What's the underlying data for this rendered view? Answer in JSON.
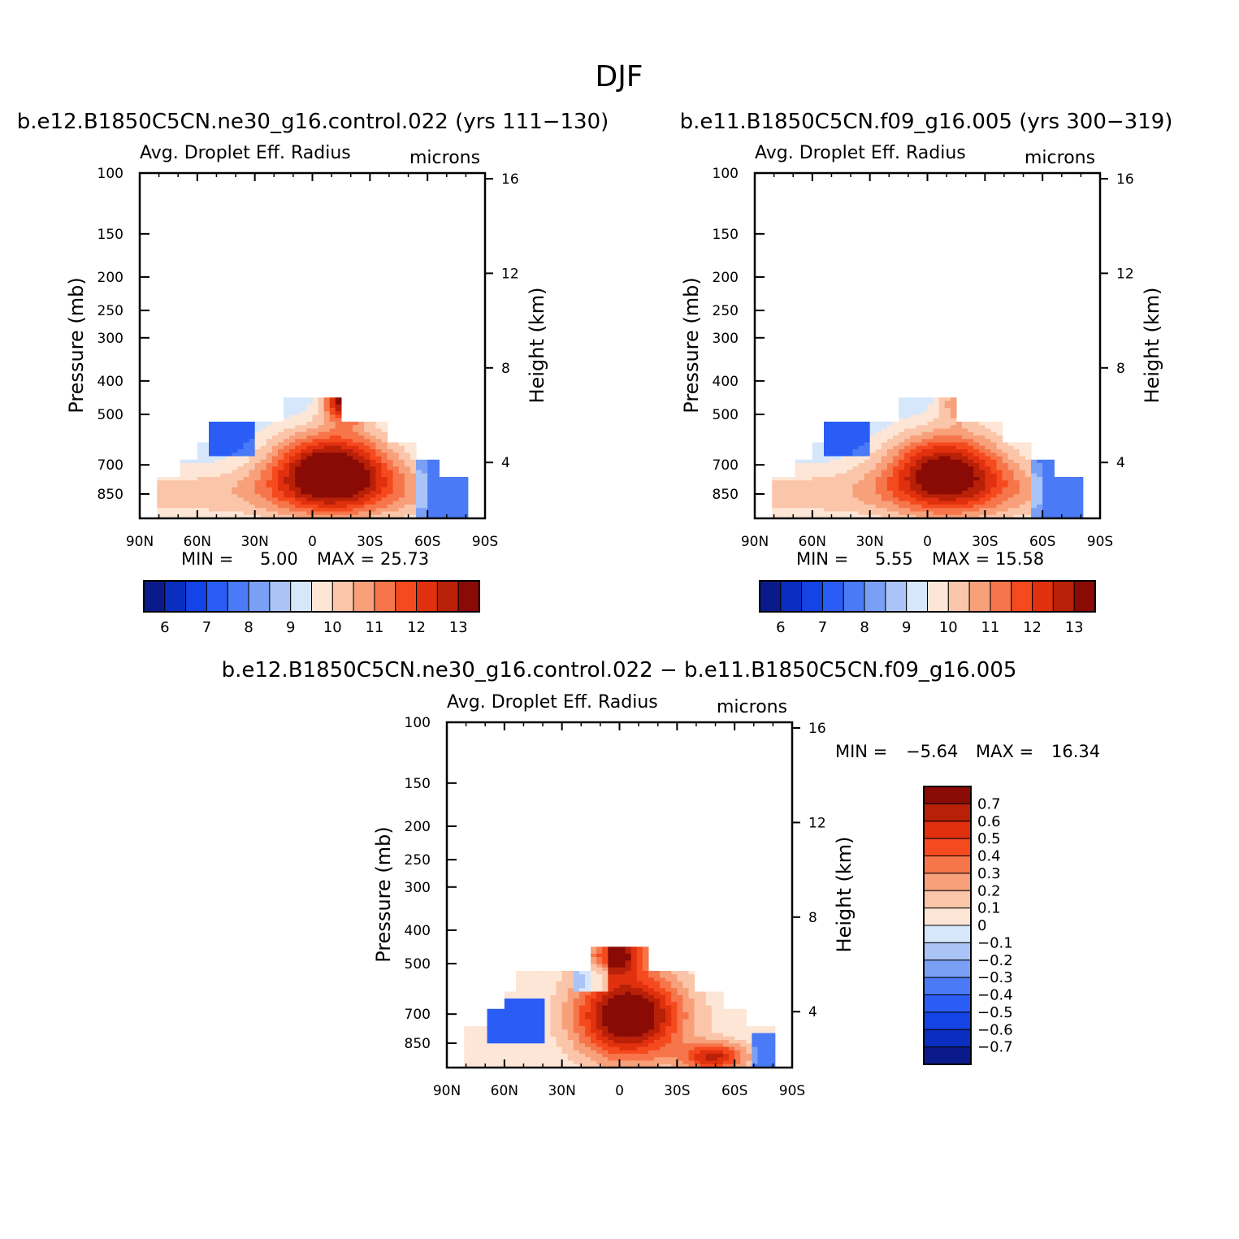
{
  "figure": {
    "season_title": "DJF"
  },
  "colors": {
    "scale": [
      "#0b1a8a",
      "#0a2fc0",
      "#1443e6",
      "#2a5df5",
      "#4a7af5",
      "#7aa0f5",
      "#aac4f7",
      "#d6e6fb",
      "#fde6d6",
      "#fbc5aa",
      "#f7a07a",
      "#f7754a",
      "#f54a1e",
      "#e0300e",
      "#b82008",
      "#8a0a06"
    ]
  },
  "chart_data": [
    {
      "type": "heatmap",
      "title": "b.e12.B1850C5CN.ne30_g16.control.022 (yrs 111-130)",
      "subtitle_left": "Avg. Droplet Eff. Radius",
      "subtitle_right": "microns",
      "ylabel": "Pressure (mb)",
      "y2label": "Height (km)",
      "x_ticks": [
        "90N",
        "60N",
        "30N",
        "0",
        "30S",
        "60S",
        "90S"
      ],
      "x_range": [
        90,
        -90
      ],
      "y_ticks": [
        100,
        150,
        200,
        250,
        300,
        400,
        500,
        700,
        850
      ],
      "y_range": [
        100,
        1000
      ],
      "y_scale": "log",
      "y2_ticks": [
        "16",
        "12",
        "8",
        "4"
      ],
      "stats": {
        "min_label": "MIN =",
        "min": "5.00",
        "max_label": "MAX =",
        "max": "25.73"
      },
      "colorbar": {
        "orientation": "horizontal",
        "labels": [
          "6",
          "7",
          "8",
          "9",
          "10",
          "11",
          "12",
          "13"
        ]
      },
      "field": "model"
    },
    {
      "type": "heatmap",
      "title": "b.e11.B1850C5CN.f09_g16.005 (yrs 300-319)",
      "subtitle_left": "Avg. Droplet Eff. Radius",
      "subtitle_right": "microns",
      "ylabel": "Pressure (mb)",
      "y2label": "Height (km)",
      "x_ticks": [
        "90N",
        "60N",
        "30N",
        "0",
        "30S",
        "60S",
        "90S"
      ],
      "x_range": [
        90,
        -90
      ],
      "y_ticks": [
        100,
        150,
        200,
        250,
        300,
        400,
        500,
        700,
        850
      ],
      "y_range": [
        100,
        1000
      ],
      "y_scale": "log",
      "y2_ticks": [
        "16",
        "12",
        "8",
        "4"
      ],
      "stats": {
        "min_label": "MIN =",
        "min": "5.55",
        "max_label": "MAX =",
        "max": "15.58"
      },
      "colorbar": {
        "orientation": "horizontal",
        "labels": [
          "6",
          "7",
          "8",
          "9",
          "10",
          "11",
          "12",
          "13"
        ]
      },
      "field": "reference"
    },
    {
      "type": "heatmap",
      "title": "b.e12.B1850C5CN.ne30_g16.control.022 - b.e11.B1850C5CN.f09_g16.005",
      "subtitle_left": "Avg. Droplet Eff. Radius",
      "subtitle_right": "microns",
      "ylabel": "Pressure (mb)",
      "y2label": "Height (km)",
      "x_ticks": [
        "90N",
        "60N",
        "30N",
        "0",
        "30S",
        "60S",
        "90S"
      ],
      "x_range": [
        90,
        -90
      ],
      "y_ticks": [
        100,
        150,
        200,
        250,
        300,
        400,
        500,
        700,
        850
      ],
      "y_range": [
        100,
        1000
      ],
      "y_scale": "log",
      "y2_ticks": [
        "16",
        "12",
        "8",
        "4"
      ],
      "stats": {
        "min_label": "MIN =",
        "min": "-5.64",
        "max_label": "MAX =",
        "max": "16.34"
      },
      "colorbar": {
        "orientation": "vertical",
        "labels": [
          "0.7",
          "0.6",
          "0.5",
          "0.4",
          "0.3",
          "0.2",
          "0.1",
          "0",
          "-0.1",
          "-0.2",
          "-0.3",
          "-0.4",
          "-0.5",
          "-0.6",
          "-0.7"
        ]
      },
      "field": "difference"
    }
  ]
}
